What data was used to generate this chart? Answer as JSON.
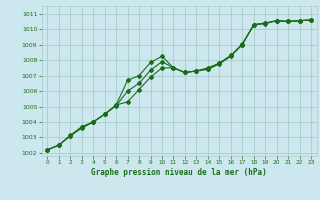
{
  "title": "Graphe pression niveau de la mer (hPa)",
  "bg_color": "#cce8ee",
  "grid_color": "#aacccc",
  "line_color": "#1a6e1a",
  "marker_color": "#1a6e1a",
  "xlim": [
    -0.5,
    23.5
  ],
  "ylim": [
    1001.8,
    1011.5
  ],
  "yticks": [
    1002,
    1003,
    1004,
    1005,
    1006,
    1007,
    1008,
    1009,
    1010,
    1011
  ],
  "xticks": [
    0,
    1,
    2,
    3,
    4,
    5,
    6,
    7,
    8,
    9,
    10,
    11,
    12,
    13,
    14,
    15,
    16,
    17,
    18,
    19,
    20,
    21,
    22,
    23
  ],
  "series1_x": [
    0,
    1,
    2,
    3,
    4,
    5,
    6,
    7,
    8,
    9,
    10,
    11,
    12,
    13,
    14,
    15,
    16,
    17,
    18,
    19,
    20,
    21,
    22,
    23
  ],
  "series1_y": [
    1002.2,
    1002.5,
    1003.1,
    1003.7,
    1004.0,
    1004.5,
    1005.1,
    1005.3,
    1006.1,
    1006.9,
    1007.5,
    1007.5,
    1007.2,
    1007.3,
    1007.5,
    1007.8,
    1008.3,
    1009.0,
    1010.3,
    1010.4,
    1010.55,
    1010.5,
    1010.55,
    1010.6
  ],
  "series2_x": [
    0,
    1,
    2,
    3,
    4,
    5,
    6,
    7,
    8,
    9,
    10,
    11,
    12,
    13,
    14,
    15,
    16,
    17,
    18,
    19,
    20,
    21,
    22,
    23
  ],
  "series2_y": [
    1002.2,
    1002.5,
    1003.1,
    1003.6,
    1004.0,
    1004.5,
    1005.1,
    1006.7,
    1007.0,
    1007.85,
    1008.25,
    1007.5,
    1007.2,
    1007.3,
    1007.4,
    1007.75,
    1008.25,
    1009.0,
    1010.3,
    1010.35,
    1010.55,
    1010.5,
    1010.55,
    1010.6
  ],
  "series3_x": [
    0,
    1,
    2,
    3,
    4,
    5,
    6,
    7,
    8,
    9,
    10,
    11,
    12,
    13,
    14,
    15,
    16,
    17,
    18,
    19,
    20,
    21,
    22,
    23
  ],
  "series3_y": [
    1002.2,
    1002.5,
    1003.15,
    1003.65,
    1004.0,
    1004.5,
    1005.05,
    1006.0,
    1006.5,
    1007.35,
    1007.9,
    1007.5,
    1007.2,
    1007.3,
    1007.45,
    1007.8,
    1008.3,
    1009.05,
    1010.25,
    1010.4,
    1010.55,
    1010.5,
    1010.55,
    1010.6
  ]
}
